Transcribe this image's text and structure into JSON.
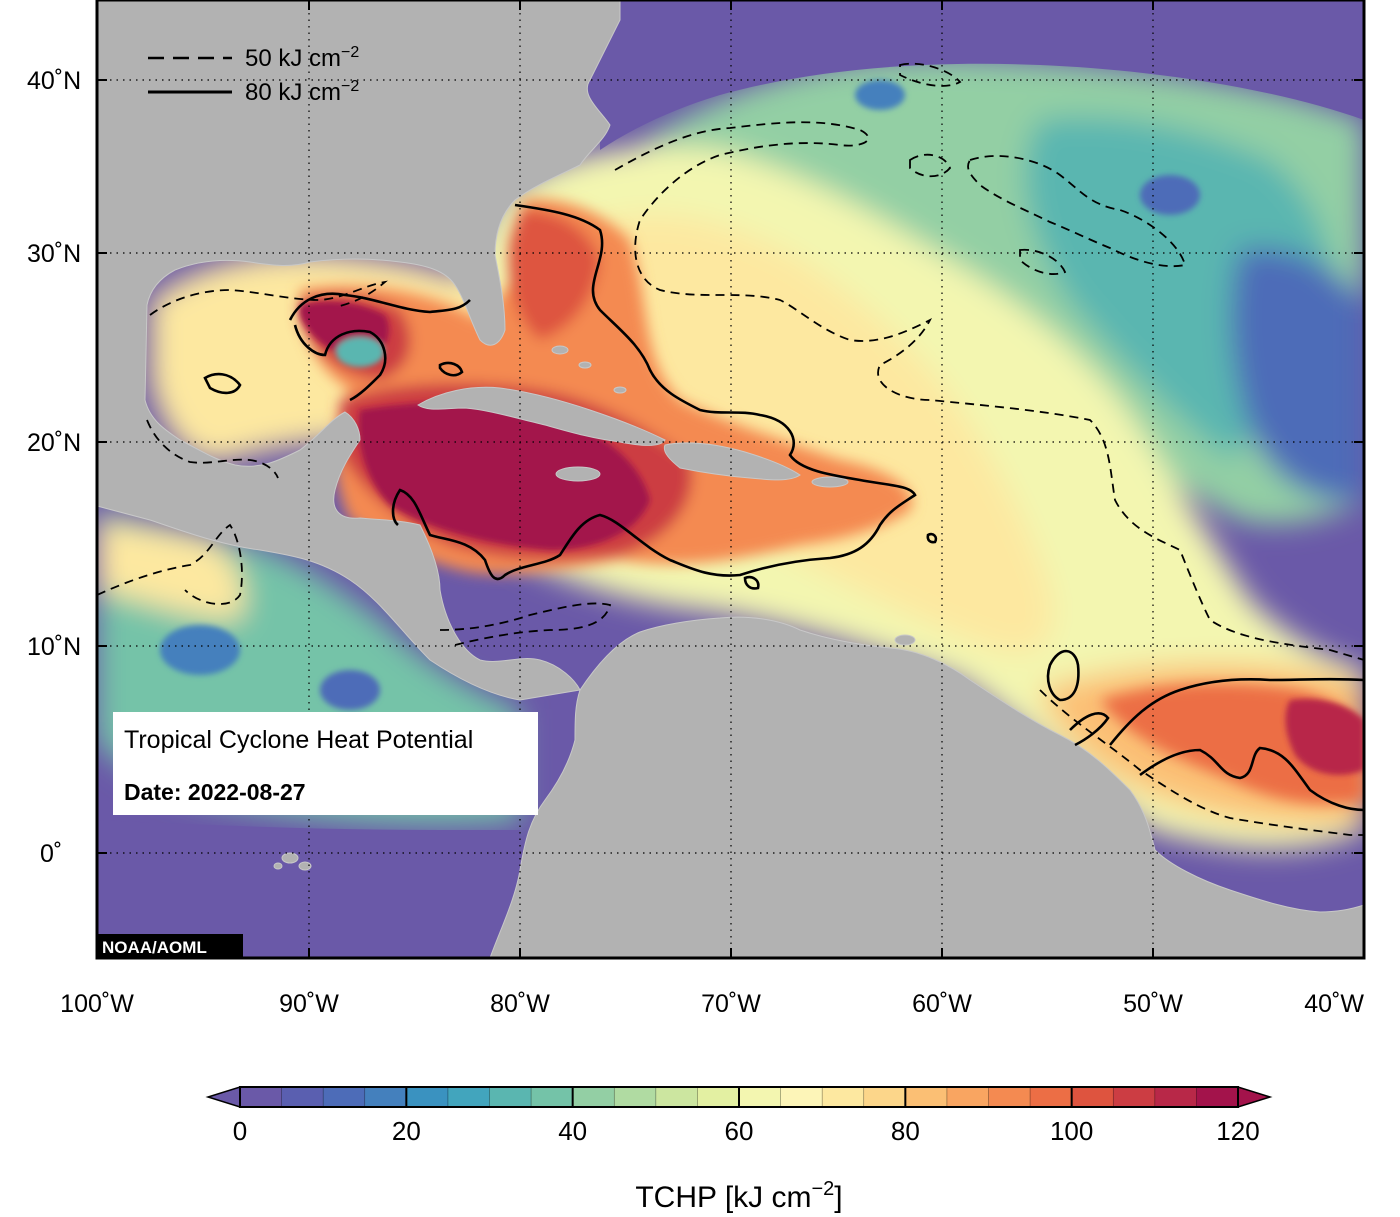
{
  "title": "Tropical Cyclone Heat Potential",
  "date_label": "Date:",
  "date_value": "2022-08-27",
  "credit": "NOAA/AOML",
  "legend": {
    "dashed_label": "50 kJ cm",
    "solid_label": "80 kJ cm",
    "superscript": "−2"
  },
  "axes": {
    "x_ticks": [
      "100˚W",
      "90˚W",
      "80˚W",
      "70˚W",
      "60˚W",
      "50˚W",
      "40˚W"
    ],
    "y_ticks": [
      "40˚N",
      "30˚N",
      "20˚N",
      "10˚N",
      "0˚"
    ]
  },
  "colorbar": {
    "title_main": "TCHP [kJ cm",
    "title_sup": "−2",
    "title_end": "]",
    "tick_labels": [
      "0",
      "20",
      "40",
      "60",
      "80",
      "100",
      "120"
    ],
    "min": 0,
    "max": 120,
    "step": 5,
    "colors": [
      "#6a59a8",
      "#5a5fb0",
      "#4d6cb8",
      "#4480bd",
      "#3a92c0",
      "#42a5bd",
      "#5ab6b0",
      "#74c3a8",
      "#93cfa4",
      "#b0dba2",
      "#cce6a0",
      "#e3f0a2",
      "#f3f6b0",
      "#fdf5b8",
      "#fde8a0",
      "#fcd68a",
      "#fbbf74",
      "#f9a561",
      "#f48a51",
      "#ec6e45",
      "#de543f",
      "#cc3d43",
      "#b82848",
      "#a3134b"
    ],
    "under_color": "#6a59a8",
    "over_color": "#a3134b"
  },
  "contour_levels": [
    50,
    80
  ],
  "colors": {
    "land": "#b2b2b2",
    "ocean_deep": "#6a59a8",
    "frame": "#000000"
  }
}
